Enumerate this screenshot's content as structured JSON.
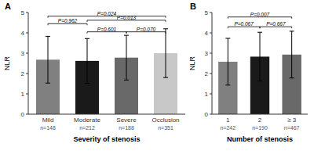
{
  "chart_data": [
    {
      "type": "bar",
      "title": "A",
      "categories": [
        "Mild",
        "Moderate",
        "Severe",
        "Occlusion"
      ],
      "values": [
        2.68,
        2.62,
        2.78,
        3.0
      ],
      "errors": [
        1.15,
        1.1,
        1.1,
        1.2
      ],
      "colors": [
        "#808080",
        "#1a1a1a",
        "#696969",
        "#c8c8c8"
      ],
      "n_labels": [
        "n=148",
        "n=212",
        "n=188",
        "n=351"
      ],
      "ylabel": "NLR",
      "xlabel": "Severity of stenosis",
      "ylim": [
        0,
        5
      ],
      "yticks": [
        0,
        1,
        2,
        3,
        4,
        5
      ],
      "significance": [
        {
          "x1": 0,
          "x2": 1,
          "y": 4.45,
          "label": "P=0.962"
        },
        {
          "x1": 1,
          "x2": 2,
          "y": 4.05,
          "label": "P=0.601"
        },
        {
          "x1": 2,
          "x2": 3,
          "y": 4.05,
          "label": "P=0.070"
        },
        {
          "x1": 1,
          "x2": 3,
          "y": 4.62,
          "label": "P=0.013"
        },
        {
          "x1": 0,
          "x2": 3,
          "y": 4.82,
          "label": "P=0.024"
        }
      ]
    },
    {
      "type": "bar",
      "title": "B",
      "categories": [
        "1",
        "2",
        "≥ 3"
      ],
      "values": [
        2.58,
        2.83,
        2.93
      ],
      "errors": [
        1.15,
        1.2,
        1.15
      ],
      "colors": [
        "#808080",
        "#1a1a1a",
        "#696969"
      ],
      "n_labels": [
        "n=242",
        "n=190",
        "n=467"
      ],
      "ylabel": "NLR",
      "xlabel": "Number of stenosis",
      "ylim": [
        0,
        5
      ],
      "yticks": [
        0,
        1,
        2,
        3,
        4,
        5
      ],
      "significance": [
        {
          "x1": 0,
          "x2": 1,
          "y": 4.3,
          "label": "P=0.067"
        },
        {
          "x1": 1,
          "x2": 2,
          "y": 4.3,
          "label": "P=0.667"
        },
        {
          "x1": 0,
          "x2": 2,
          "y": 4.78,
          "label": "P=0.007"
        }
      ]
    }
  ]
}
